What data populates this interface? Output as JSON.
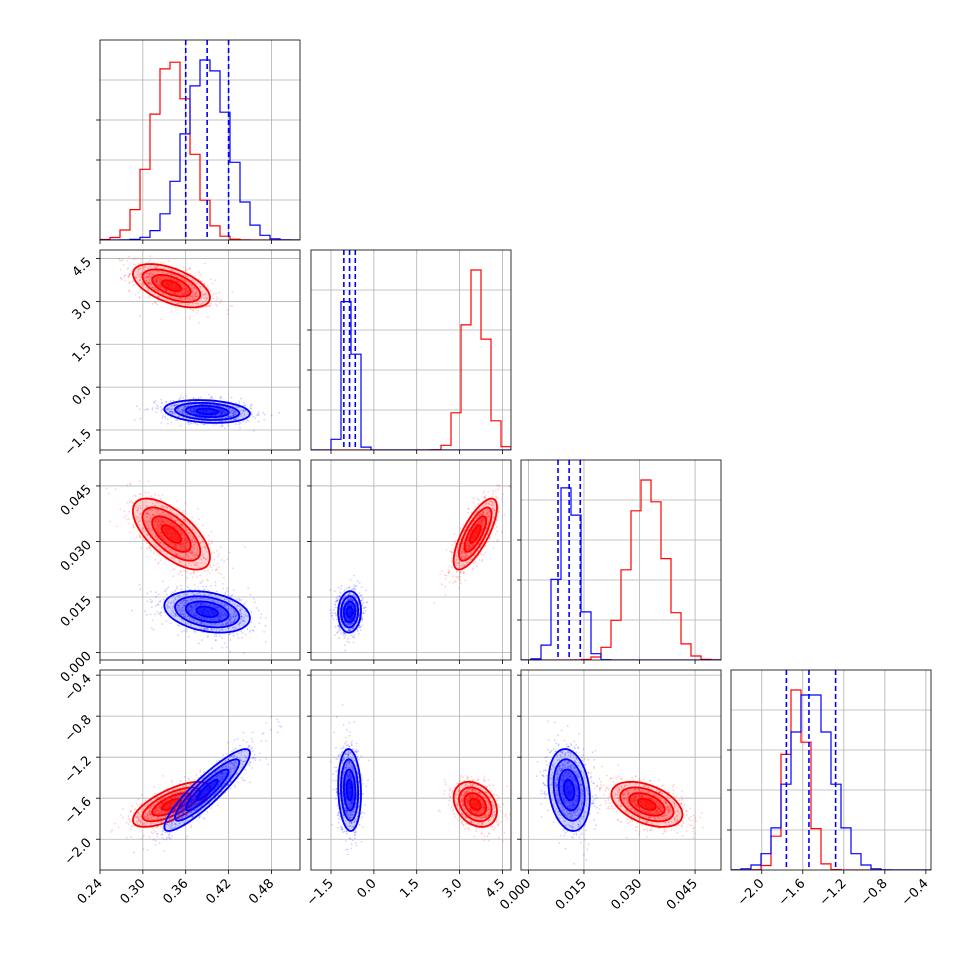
{
  "chart_data": {
    "type": "scatter",
    "subtype": "corner-plot",
    "grid": true,
    "legend": "none",
    "params": [
      {
        "range": [
          0.24,
          0.52
        ],
        "ticks": [
          0.24,
          0.3,
          0.36,
          0.42,
          0.48
        ],
        "tick_labels": [
          "0.24",
          "0.30",
          "0.36",
          "0.42",
          "0.48"
        ]
      },
      {
        "range": [
          -2.2,
          4.8
        ],
        "ticks": [
          -1.5,
          0.0,
          1.5,
          3.0,
          4.5
        ],
        "tick_labels": [
          "−1.5",
          "0.0",
          "1.5",
          "3.0",
          "4.5"
        ]
      },
      {
        "range": [
          -0.002,
          0.052
        ],
        "ticks": [
          0.0,
          0.015,
          0.03,
          0.045
        ],
        "tick_labels": [
          "0.000",
          "0.015",
          "0.030",
          "0.045"
        ]
      },
      {
        "range": [
          -2.3,
          -0.35
        ],
        "ticks": [
          -2.0,
          -1.6,
          -1.2,
          -0.8,
          -0.4
        ],
        "tick_labels": [
          "−2.0",
          "−1.6",
          "−1.2",
          "−0.8",
          "−0.4"
        ]
      }
    ],
    "series": [
      {
        "color": "#ff0000",
        "mean": [
          0.34,
          3.55,
          0.032,
          -1.66
        ],
        "std": [
          0.027,
          0.38,
          0.0048,
          0.11
        ],
        "corr": {
          "0-1": -0.55,
          "0-2": -0.65,
          "0-3": 0.7,
          "1-2": 0.75,
          "1-3": -0.3,
          "2-3": -0.45
        }
      },
      {
        "color": "#0000ff",
        "mean": [
          0.39,
          -0.85,
          0.011,
          -1.52
        ],
        "std": [
          0.03,
          0.2,
          0.0028,
          0.2
        ],
        "corr": {
          "0-1": -0.2,
          "0-2": -0.3,
          "0-3": 0.9,
          "1-2": 0.05,
          "1-3": -0.1,
          "2-3": -0.2
        }
      }
    ],
    "quantile_lines": {
      "color": "#0000ff",
      "values": [
        [
          0.36,
          0.39,
          0.42
        ],
        [
          -1.05,
          -0.85,
          -0.65
        ],
        [
          0.008,
          0.011,
          0.014
        ],
        [
          -1.76,
          -1.54,
          -1.28
        ]
      ]
    }
  }
}
